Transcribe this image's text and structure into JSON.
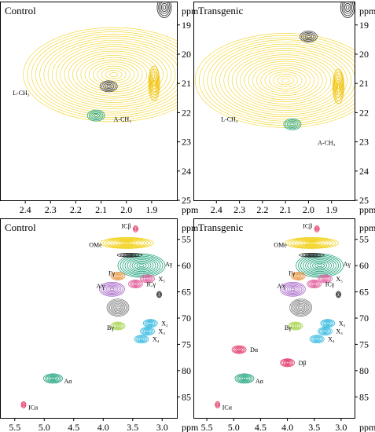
{
  "figure": {
    "type": "2D HSQC NMR spectra, 2×2 panels"
  },
  "chart_data": [
    {
      "type": "contour",
      "title": "Control",
      "x_unit": "ppm",
      "y_unit": "ppm",
      "xlim": [
        2.5,
        1.8
      ],
      "ylim": [
        18.2,
        25
      ],
      "x_ticks": [
        "2.4",
        "2.3",
        "2.2",
        "2.1",
        "2.0",
        "1.9"
      ],
      "y_ticks": [
        "19",
        "20",
        "21",
        "22",
        "23",
        "24",
        "25"
      ],
      "signals": [
        {
          "label": "",
          "shape": "cloud",
          "x": 2.05,
          "y": 20.7,
          "color": "#f2d21e"
        },
        {
          "label": "",
          "shape": "ridge",
          "x": 1.89,
          "y": 21.0,
          "color": "#f0c000"
        },
        {
          "label": "",
          "shape": "blob",
          "x": 1.85,
          "y": 18.4,
          "color": "#222222"
        },
        {
          "label": "",
          "shape": "blob",
          "x": 2.07,
          "y": 21.1,
          "color": "#444444"
        },
        {
          "label": "",
          "shape": "blob",
          "x": 2.12,
          "y": 22.1,
          "color": "#1aa07a"
        }
      ],
      "annotations": [
        {
          "text": "L-CH₃",
          "x": 2.45,
          "y": 21.4
        },
        {
          "text": "A-CH₃",
          "x": 2.05,
          "y": 22.3
        }
      ]
    },
    {
      "type": "contour",
      "title": "Transgenic",
      "x_unit": "ppm",
      "y_unit": "ppm",
      "xlim": [
        2.5,
        1.8
      ],
      "ylim": [
        18.2,
        25
      ],
      "x_ticks": [
        "2.4",
        "2.3",
        "2.2",
        "2.1",
        "2.0",
        "1.9"
      ],
      "y_ticks": [
        "19",
        "20",
        "21",
        "22",
        "23",
        "24",
        "25"
      ],
      "signals": [
        {
          "label": "",
          "shape": "cloud",
          "x": 2.1,
          "y": 20.9,
          "color": "#f2d21e"
        },
        {
          "label": "",
          "shape": "ridge",
          "x": 1.87,
          "y": 21.1,
          "color": "#f0c000"
        },
        {
          "label": "",
          "shape": "blob",
          "x": 1.83,
          "y": 18.4,
          "color": "#222222"
        },
        {
          "label": "",
          "shape": "blob",
          "x": 2.0,
          "y": 19.4,
          "color": "#444444"
        },
        {
          "label": "",
          "shape": "blob",
          "x": 2.07,
          "y": 22.4,
          "color": "#1aa07a"
        }
      ],
      "annotations": [
        {
          "text": "L-CH₃",
          "x": 2.38,
          "y": 22.3
        },
        {
          "text": "A-CH₃",
          "x": 1.96,
          "y": 23.1
        }
      ]
    },
    {
      "type": "contour",
      "title": "Control",
      "x_unit": "ppm",
      "y_unit": "ppm",
      "xlim": [
        5.75,
        2.75
      ],
      "ylim": [
        51,
        89
      ],
      "x_ticks": [
        "5.5",
        "5.0",
        "4.5",
        "4.0",
        "3.5",
        "3.0"
      ],
      "y_ticks": [
        "55",
        "60",
        "65",
        "70",
        "75",
        "80",
        "85"
      ],
      "signals": [
        {
          "label": "OMe",
          "x": 3.6,
          "y": 55.7,
          "color": "#f2d21e"
        },
        {
          "label": "Aγ",
          "x": 3.35,
          "y": 60.0,
          "color": "#1aa07a"
        },
        {
          "label": "Fγ",
          "x": 3.75,
          "y": 62.0,
          "color": "#e8913a"
        },
        {
          "label": "ICγ",
          "x": 3.45,
          "y": 63.5,
          "color": "#e05a9a"
        },
        {
          "label": "X₅",
          "x": 3.25,
          "y": 62.5,
          "color": "#e05a9a"
        },
        {
          "label": "A'γ",
          "x": 3.85,
          "y": 64.5,
          "color": "#a868c8"
        },
        {
          "label": "Bγ",
          "x": 3.75,
          "y": 71.5,
          "color": "#a0d040"
        },
        {
          "label": "X₂",
          "x": 3.2,
          "y": 71.0,
          "color": "#30b8e0"
        },
        {
          "label": "X₃",
          "x": 3.25,
          "y": 72.5,
          "color": "#30b8e0"
        },
        {
          "label": "X₄",
          "x": 3.35,
          "y": 74.0,
          "color": "#30b8e0"
        },
        {
          "label": "Aα",
          "x": 4.85,
          "y": 81.5,
          "color": "#1aa07a"
        },
        {
          "label": "ICα",
          "x": 5.35,
          "y": 86.5,
          "color": "#e03060"
        },
        {
          "label": "ICβ",
          "x": 3.45,
          "y": 53.0,
          "color": "#e03060"
        }
      ]
    },
    {
      "type": "contour",
      "title": "Transgenic",
      "x_unit": "ppm",
      "y_unit": "ppm",
      "xlim": [
        5.75,
        2.75
      ],
      "ylim": [
        51,
        89
      ],
      "x_ticks": [
        "5.5",
        "5.0",
        "4.5",
        "4.0",
        "3.5",
        "3.0"
      ],
      "y_ticks": [
        "55",
        "60",
        "65",
        "70",
        "75",
        "80",
        "85"
      ],
      "signals": [
        {
          "label": "ICβ",
          "x": 3.45,
          "y": 53.0,
          "color": "#e03060"
        },
        {
          "label": "OMe",
          "x": 3.55,
          "y": 55.7,
          "color": "#f2d21e"
        },
        {
          "label": "Aγ",
          "x": 3.4,
          "y": 60.0,
          "color": "#1aa07a"
        },
        {
          "label": "Fγ",
          "x": 3.8,
          "y": 62.0,
          "color": "#e8913a"
        },
        {
          "label": "X₅",
          "x": 3.3,
          "y": 62.5,
          "color": "#e05a9a"
        },
        {
          "label": "A'γ",
          "x": 3.9,
          "y": 64.5,
          "color": "#a868c8"
        },
        {
          "label": "ICγ",
          "x": 3.5,
          "y": 63.5,
          "color": "#e05a9a"
        },
        {
          "label": "Bγ",
          "x": 3.85,
          "y": 71.5,
          "color": "#a0d040"
        },
        {
          "label": "X₂",
          "x": 3.25,
          "y": 71.0,
          "color": "#30b8e0"
        },
        {
          "label": "X₃",
          "x": 3.3,
          "y": 72.5,
          "color": "#30b8e0"
        },
        {
          "label": "X₄",
          "x": 3.45,
          "y": 74.0,
          "color": "#30b8e0"
        },
        {
          "label": "Dα",
          "x": 4.9,
          "y": 76.0,
          "color": "#e03060"
        },
        {
          "label": "Dβ",
          "x": 4.0,
          "y": 78.5,
          "color": "#e03060"
        },
        {
          "label": "Aα",
          "x": 4.8,
          "y": 81.5,
          "color": "#1aa07a"
        },
        {
          "label": "ICα",
          "x": 5.3,
          "y": 86.5,
          "color": "#e03060"
        }
      ]
    }
  ]
}
